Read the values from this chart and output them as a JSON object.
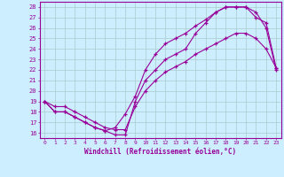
{
  "xlabel": "Windchill (Refroidissement éolien,°C)",
  "bg_color": "#cceeff",
  "grid_color": "#aacccc",
  "line_color": "#990099",
  "xlim": [
    -0.5,
    23.5
  ],
  "ylim": [
    15.5,
    28.5
  ],
  "xticks": [
    0,
    1,
    2,
    3,
    4,
    5,
    6,
    7,
    8,
    9,
    10,
    11,
    12,
    13,
    14,
    15,
    16,
    17,
    18,
    19,
    20,
    21,
    22,
    23
  ],
  "yticks": [
    16,
    17,
    18,
    19,
    20,
    21,
    22,
    23,
    24,
    25,
    26,
    27,
    28
  ],
  "line1_x": [
    0,
    1,
    2,
    3,
    4,
    5,
    6,
    7,
    8,
    9,
    10,
    11,
    12,
    13,
    14,
    15,
    16,
    17,
    18,
    19,
    20,
    21,
    22,
    23
  ],
  "line1_y": [
    19,
    18,
    18,
    17.5,
    17,
    16.5,
    16.2,
    15.8,
    15.8,
    19,
    21,
    22,
    23,
    23.5,
    24,
    25.5,
    26.5,
    27.5,
    28,
    28,
    28,
    27.5,
    26,
    22
  ],
  "line2_x": [
    0,
    1,
    2,
    3,
    4,
    5,
    6,
    7,
    8,
    9,
    10,
    11,
    12,
    13,
    14,
    15,
    16,
    17,
    18,
    19,
    20,
    21,
    22,
    23
  ],
  "line2_y": [
    19,
    18,
    18,
    17.5,
    17,
    16.5,
    16.2,
    16.5,
    17.8,
    19.5,
    22,
    23.5,
    24.5,
    25,
    25.5,
    26.2,
    26.8,
    27.5,
    28,
    28,
    28,
    27,
    26.5,
    22.2
  ],
  "line3_x": [
    0,
    1,
    2,
    3,
    4,
    5,
    6,
    7,
    8,
    9,
    10,
    11,
    12,
    13,
    14,
    15,
    16,
    17,
    18,
    19,
    20,
    21,
    22,
    23
  ],
  "line3_y": [
    19,
    18.5,
    18.5,
    18,
    17.5,
    17,
    16.5,
    16.3,
    16.3,
    18.5,
    20,
    21,
    21.8,
    22.3,
    22.8,
    23.5,
    24,
    24.5,
    25,
    25.5,
    25.5,
    25,
    24,
    22.2
  ]
}
